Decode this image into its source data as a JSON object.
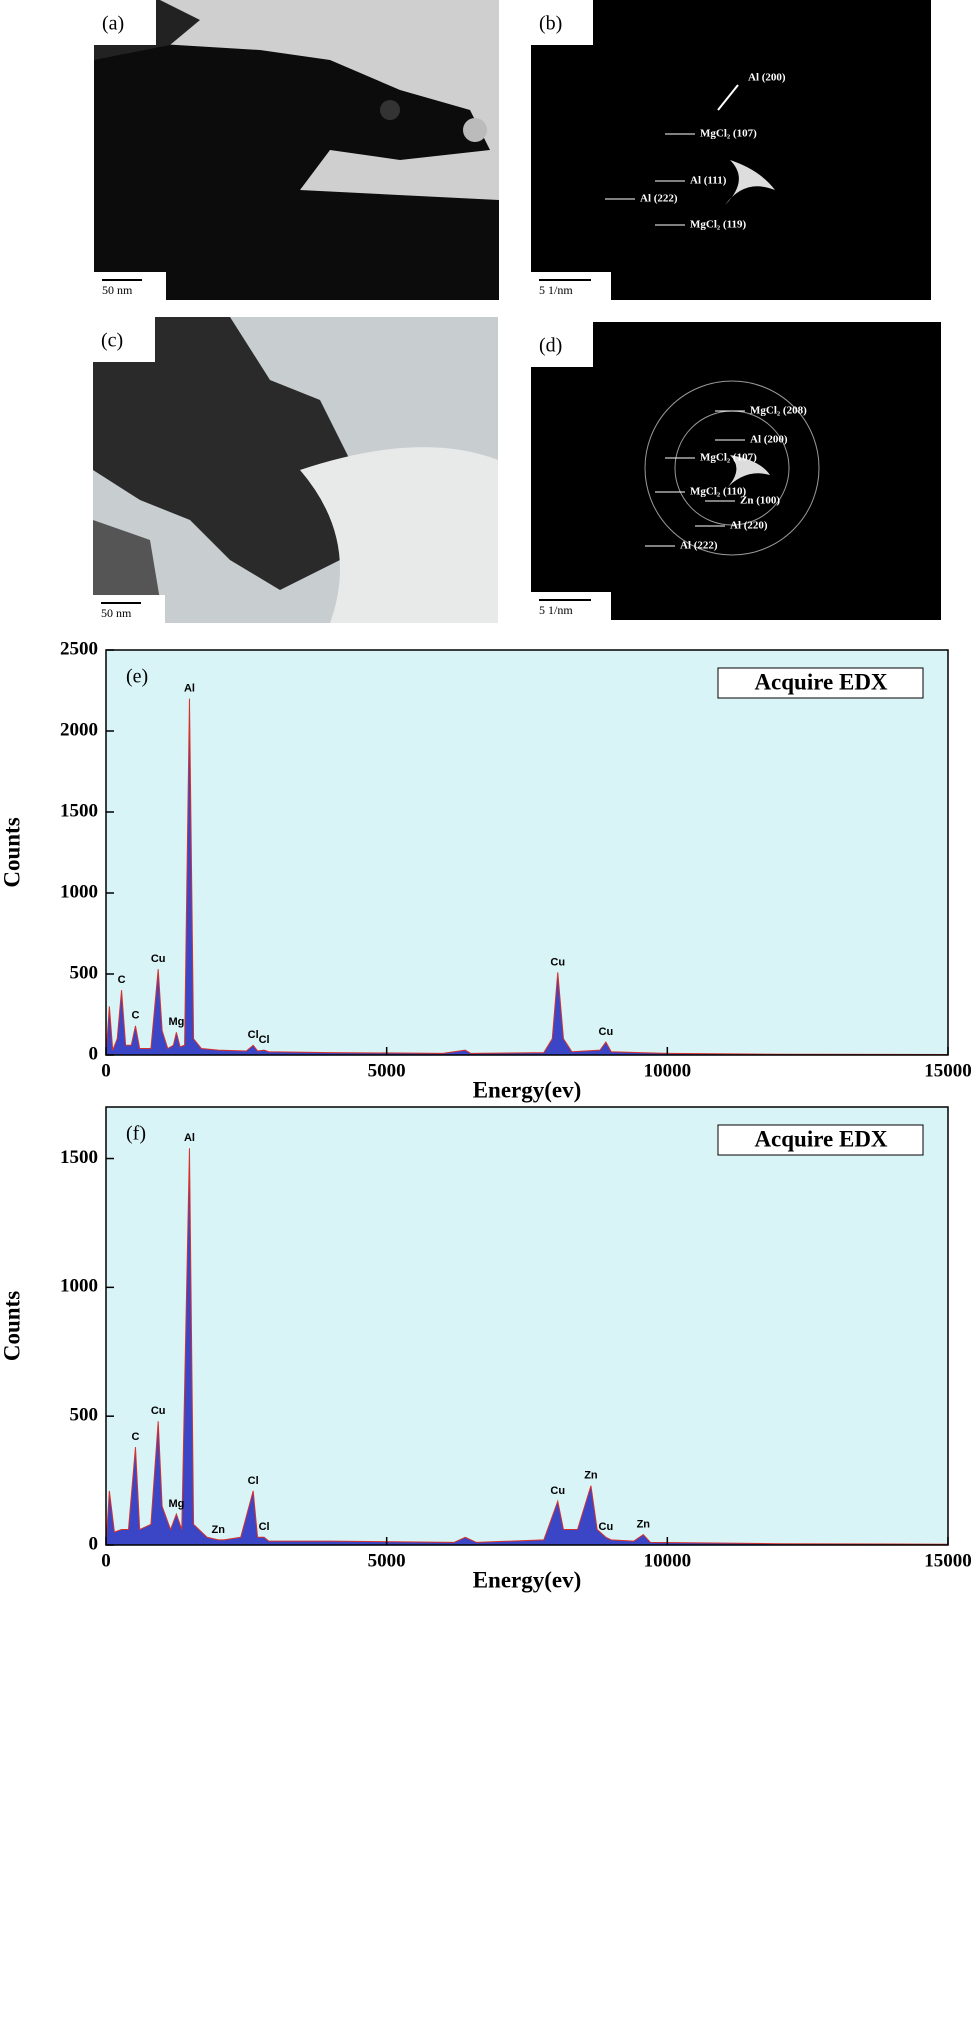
{
  "panels": [
    {
      "label": "(a)",
      "scale": "50 nm",
      "annotations": []
    },
    {
      "label": "(b)",
      "scale": "5 1/nm",
      "annotations": [
        "Al (200)",
        "MgCl₂ (107)",
        "Al (111)",
        "Al (222)",
        "MgCl₂ (119)"
      ]
    },
    {
      "label": "(c)",
      "scale": "50 nm",
      "annotations": []
    },
    {
      "label": "(d)",
      "scale": "5 1/nm",
      "annotations": [
        "MgCl₂ (208)",
        "Al (200)",
        "MgCl₂ (107)",
        "MgCl₂ (110)",
        "Zn (100)",
        "Al (220)",
        "Al (222)"
      ]
    }
  ],
  "chart_data": [
    {
      "type": "area",
      "label": "(e)",
      "legend": "Acquire EDX",
      "xlabel": "Energy(ev)",
      "ylabel": "Counts",
      "xlim": [
        0,
        15000
      ],
      "ylim": [
        0,
        2500
      ],
      "xticks": [
        0,
        5000,
        10000,
        15000
      ],
      "yticks": [
        0,
        500,
        1000,
        1500,
        2000,
        2500
      ],
      "background": "#d8f4f6",
      "x": [
        0,
        60,
        120,
        200,
        277,
        350,
        450,
        525,
        600,
        800,
        930,
        1000,
        1100,
        1200,
        1254,
        1320,
        1400,
        1487,
        1560,
        1700,
        2000,
        2500,
        2622,
        2700,
        2816,
        2900,
        4000,
        6000,
        6400,
        6500,
        7800,
        7950,
        8048,
        8150,
        8300,
        8800,
        8905,
        9000,
        10000,
        12000,
        15000
      ],
      "series": [
        {
          "name": "Acquire EDX",
          "color": "#3a46c6",
          "values": [
            0,
            300,
            30,
            100,
            400,
            60,
            60,
            180,
            40,
            40,
            530,
            150,
            40,
            60,
            140,
            50,
            60,
            2200,
            100,
            40,
            30,
            25,
            60,
            25,
            30,
            20,
            15,
            10,
            30,
            10,
            15,
            100,
            510,
            100,
            20,
            30,
            80,
            20,
            10,
            5,
            3
          ]
        }
      ],
      "annotations": [
        {
          "text": "C",
          "x": 277
        },
        {
          "text": "C",
          "x": 525
        },
        {
          "text": "Cu",
          "x": 930
        },
        {
          "text": "Mg",
          "x": 1254
        },
        {
          "text": "Al",
          "x": 1487
        },
        {
          "text": "Cl",
          "x": 2622
        },
        {
          "text": "Cl",
          "x": 2816
        },
        {
          "text": "Cu",
          "x": 8048
        },
        {
          "text": "Cu",
          "x": 8905
        }
      ]
    },
    {
      "type": "area",
      "label": "(f)",
      "legend": "Acquire EDX",
      "xlabel": "Energy(ev)",
      "ylabel": "Counts",
      "xlim": [
        0,
        15000
      ],
      "ylim": [
        0,
        1700
      ],
      "xticks": [
        0,
        5000,
        10000,
        15000
      ],
      "yticks": [
        0,
        500,
        1000,
        1500
      ],
      "background": "#d8f4f6",
      "x": [
        0,
        60,
        150,
        277,
        400,
        525,
        600,
        800,
        930,
        1000,
        1150,
        1254,
        1350,
        1487,
        1560,
        1800,
        2000,
        2100,
        2400,
        2622,
        2700,
        2816,
        2900,
        4000,
        6200,
        6400,
        6600,
        7800,
        8048,
        8150,
        8400,
        8639,
        8750,
        8905,
        9000,
        9400,
        9572,
        9700,
        12000,
        15000
      ],
      "series": [
        {
          "name": "Acquire EDX",
          "color": "#3a46c6",
          "values": [
            0,
            210,
            50,
            60,
            60,
            380,
            60,
            80,
            480,
            150,
            60,
            120,
            60,
            1540,
            80,
            30,
            20,
            20,
            30,
            210,
            30,
            30,
            15,
            15,
            10,
            30,
            10,
            20,
            170,
            60,
            60,
            230,
            60,
            30,
            20,
            15,
            40,
            10,
            5,
            3
          ]
        }
      ],
      "annotations": [
        {
          "text": "C",
          "x": 525
        },
        {
          "text": "Cu",
          "x": 930
        },
        {
          "text": "Mg",
          "x": 1254
        },
        {
          "text": "Al",
          "x": 1487
        },
        {
          "text": "Zn",
          "x": 2000
        },
        {
          "text": "Cl",
          "x": 2622
        },
        {
          "text": "Cl",
          "x": 2816
        },
        {
          "text": "Cu",
          "x": 8048
        },
        {
          "text": "Zn",
          "x": 8639
        },
        {
          "text": "Cu",
          "x": 8905
        },
        {
          "text": "Zn",
          "x": 9572
        }
      ]
    }
  ]
}
